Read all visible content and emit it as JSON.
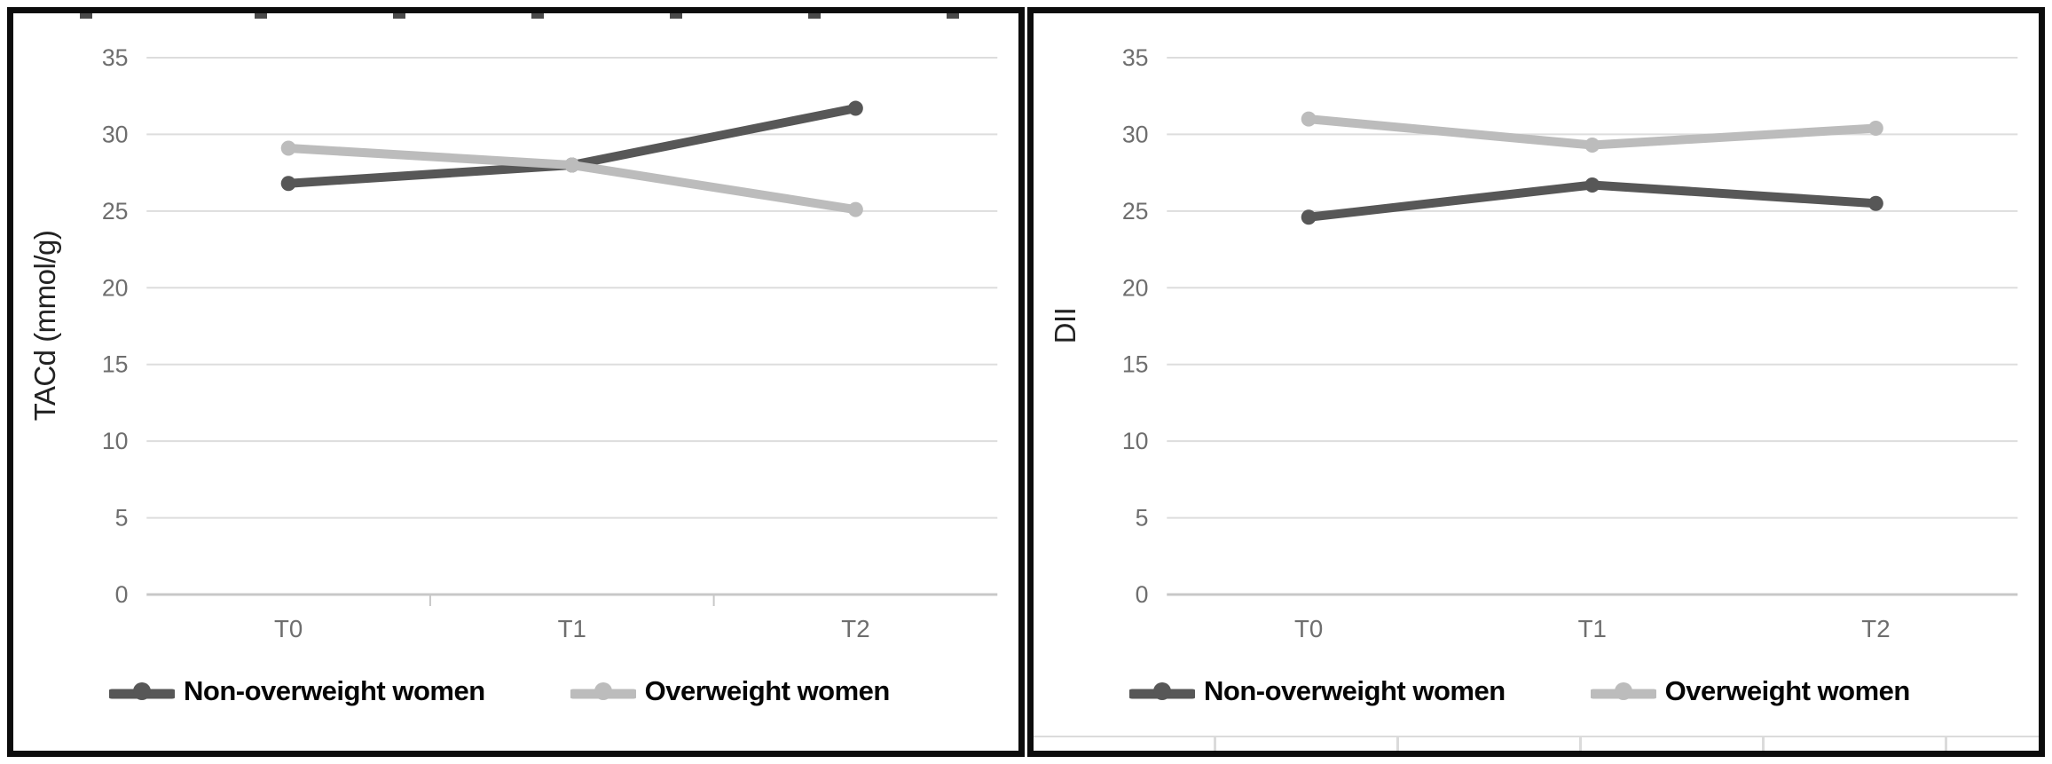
{
  "chart_data": [
    {
      "type": "line",
      "ylabel": "TACd (mmol/g)",
      "xlabel": "",
      "categories": [
        "T0",
        "T1",
        "T2"
      ],
      "ylim": [
        0,
        35
      ],
      "yticks": [
        0,
        5,
        10,
        15,
        20,
        25,
        30,
        35
      ],
      "grid": true,
      "legend_position": "bottom",
      "axis_boundary_ticks": true,
      "series": [
        {
          "name": "Non-overweight women",
          "values": [
            26.8,
            28.0,
            31.7
          ],
          "color": "#575757"
        },
        {
          "name": "Overweight women",
          "values": [
            29.1,
            28.0,
            25.1
          ],
          "color": "#bcbcbc"
        }
      ]
    },
    {
      "type": "line",
      "ylabel": "DII",
      "xlabel": "",
      "categories": [
        "T0",
        "T1",
        "T2"
      ],
      "ylim": [
        0,
        35
      ],
      "yticks": [
        0,
        5,
        10,
        15,
        20,
        25,
        30,
        35
      ],
      "grid": true,
      "legend_position": "bottom",
      "axis_boundary_ticks": false,
      "series": [
        {
          "name": "Non-overweight women",
          "values": [
            24.6,
            26.7,
            25.5
          ],
          "color": "#575757"
        },
        {
          "name": "Overweight women",
          "values": [
            31.0,
            29.3,
            30.4
          ],
          "color": "#bcbcbc"
        }
      ]
    }
  ],
  "colors": {
    "grid": "#dddddd",
    "axis": "#c8c8c8",
    "tick_label": "#6e6e6e",
    "axis_title": "#222222",
    "legend_text": "#060606",
    "panel_border": "#0c0c0c",
    "series_dark": "#575757",
    "series_light": "#bcbcbc"
  }
}
